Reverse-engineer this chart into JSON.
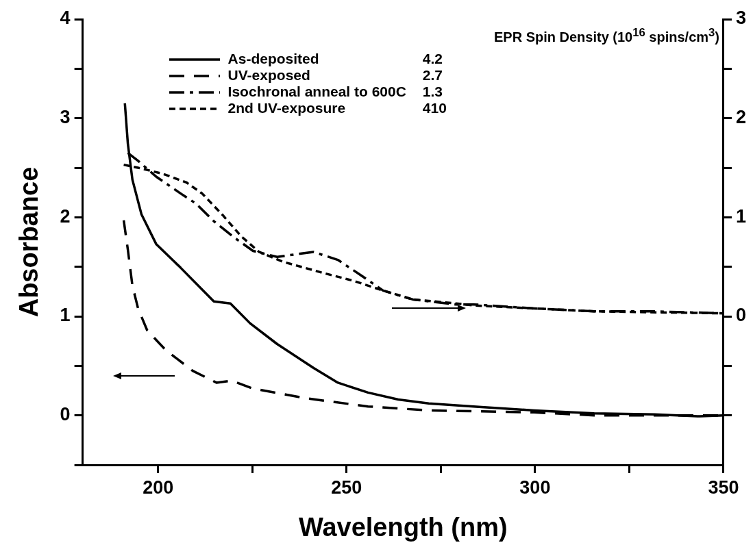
{
  "chart_data": {
    "type": "line",
    "xlabel": "Wavelength (nm)",
    "ylabel": "Absorbance",
    "xlim": [
      180,
      350
    ],
    "xticks": [
      200,
      {
        "value": 225,
        "label": null
      },
      250,
      {
        "value": 275,
        "label": null
      },
      300,
      {
        "value": 325,
        "label": null
      },
      350
    ],
    "ylim": [
      -0.5,
      4
    ],
    "yticks": [
      {
        "value": -0.5,
        "label": null
      },
      0,
      {
        "value": 0.5,
        "label": null
      },
      1,
      {
        "value": 1.5,
        "label": null
      },
      2,
      {
        "value": 2.5,
        "label": null
      },
      3,
      {
        "value": 3.5,
        "label": null
      },
      4
    ],
    "y2lim": [
      -1.5,
      3
    ],
    "y2ticks": [
      {
        "value": -1,
        "label": null
      },
      {
        "value": -0.5,
        "label": null
      },
      0,
      {
        "value": 0.5,
        "label": null
      },
      1,
      {
        "value": 1.5,
        "label": null
      },
      2,
      {
        "value": 2.5,
        "label": null
      },
      3
    ],
    "grid": false,
    "legend": "top",
    "marker": "none",
    "annotations": [
      "EPR Spin Density (10$^{16}$ spins/cm$^{3}$)",
      "4.2",
      "2.7",
      "1.3",
      "410"
    ],
    "series": [
      {
        "name": "As-deposited",
        "color": "#000000",
        "line_style": "solid",
        "x": [
          191.2,
          192,
          193.2,
          195.6,
          199.5,
          206,
          214.8,
          219.2,
          224.4,
          231.6,
          241.2,
          247.7,
          255.7,
          263.7,
          271.8,
          283.7,
          299.7,
          315.7,
          331.7,
          343.7,
          350
        ],
        "values": [
          3.15,
          2.74,
          2.38,
          2.03,
          1.73,
          1.49,
          1.15,
          1.13,
          0.93,
          0.72,
          0.48,
          0.33,
          0.23,
          0.16,
          0.12,
          0.09,
          0.05,
          0.02,
          0.01,
          -0.01,
          0.0
        ]
      },
      {
        "name": "UV-exposed",
        "color": "#000000",
        "line_style": "dashed",
        "x": [
          190.9,
          192,
          193.2,
          194.7,
          197.1,
          202,
          209.2,
          215.5,
          219.6,
          225.2,
          239.7,
          255.7,
          271.8,
          299.7,
          315.7,
          350
        ],
        "values": [
          1.97,
          1.67,
          1.31,
          1.08,
          0.86,
          0.66,
          0.45,
          0.33,
          0.35,
          0.27,
          0.17,
          0.09,
          0.05,
          0.03,
          0.0,
          0.0
        ]
      },
      {
        "name": "Isochronal anneal to 600C",
        "color": "#000000",
        "line_style": "dashdot",
        "axis": "y2",
        "x": [
          192,
          194.7,
          199.5,
          206,
          210,
          214.8,
          220.4,
          225.2,
          231.6,
          241.2,
          247.7,
          254,
          259.7,
          267.6,
          279,
          283.7,
          299.7,
          315.7,
          331.7,
          350
        ],
        "values": [
          1.65,
          1.57,
          1.41,
          1.24,
          1.14,
          0.96,
          0.79,
          0.66,
          0.6,
          0.65,
          0.57,
          0.41,
          0.26,
          0.17,
          0.12,
          0.12,
          0.08,
          0.05,
          0.05,
          0.03
        ]
      },
      {
        "name": "2nd UV-exposure",
        "color": "#000000",
        "line_style": "dotted",
        "axis": "y2",
        "x": [
          190.9,
          194.7,
          201.2,
          207.6,
          211.7,
          217.2,
          222,
          226.8,
          233.2,
          243.6,
          251.7,
          259.7,
          267.6,
          279,
          283.7,
          299.7,
          315.7,
          350
        ],
        "values": [
          1.53,
          1.5,
          1.44,
          1.35,
          1.24,
          1.02,
          0.81,
          0.65,
          0.55,
          0.44,
          0.36,
          0.26,
          0.17,
          0.13,
          0.11,
          0.08,
          0.05,
          0.03
        ]
      }
    ]
  }
}
